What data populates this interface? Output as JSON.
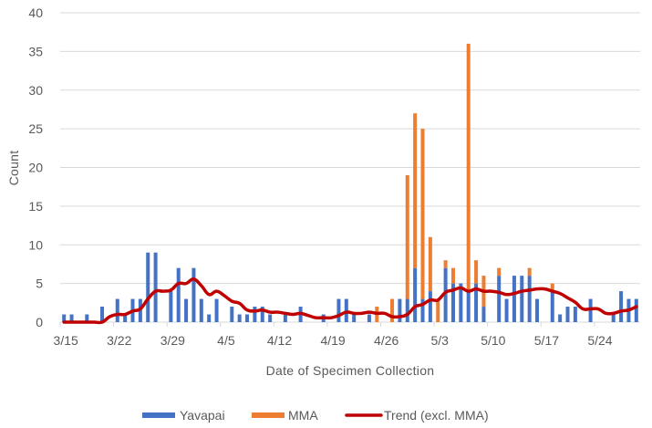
{
  "chart_data": {
    "type": "bar",
    "stacked": true,
    "title": "",
    "xlabel": "Date of Specimen Collection",
    "ylabel": "Count",
    "ylim": [
      0,
      40
    ],
    "yticks": [
      0,
      5,
      10,
      15,
      20,
      25,
      30,
      35,
      40
    ],
    "grid": true,
    "legend_position": "bottom",
    "start_date": "3/15",
    "x_tick_labels": [
      "3/15",
      "3/22",
      "3/29",
      "4/5",
      "4/12",
      "4/19",
      "4/26",
      "5/3",
      "5/10",
      "5/17",
      "5/24"
    ],
    "x_tick_interval_days": 7,
    "categories": [
      "3/15",
      "3/16",
      "3/17",
      "3/18",
      "3/19",
      "3/20",
      "3/21",
      "3/22",
      "3/23",
      "3/24",
      "3/25",
      "3/26",
      "3/27",
      "3/28",
      "3/29",
      "3/30",
      "3/31",
      "4/1",
      "4/2",
      "4/3",
      "4/4",
      "4/5",
      "4/6",
      "4/7",
      "4/8",
      "4/9",
      "4/10",
      "4/11",
      "4/12",
      "4/13",
      "4/14",
      "4/15",
      "4/16",
      "4/17",
      "4/18",
      "4/19",
      "4/20",
      "4/21",
      "4/22",
      "4/23",
      "4/24",
      "4/25",
      "4/26",
      "4/27",
      "4/28",
      "4/29",
      "4/30",
      "5/1",
      "5/2",
      "5/3",
      "5/4",
      "5/5",
      "5/6",
      "5/7",
      "5/8",
      "5/9",
      "5/10",
      "5/11",
      "5/12",
      "5/13",
      "5/14",
      "5/15",
      "5/16",
      "5/17",
      "5/18",
      "5/19",
      "5/20",
      "5/21",
      "5/22",
      "5/23",
      "5/24",
      "5/25",
      "5/26",
      "5/27",
      "5/28",
      "5/29"
    ],
    "series": [
      {
        "name": "Yavapai",
        "type": "bar",
        "color": "#4472c4",
        "values": [
          1,
          1,
          0,
          1,
          0,
          2,
          0,
          3,
          1,
          3,
          3,
          9,
          9,
          0,
          4,
          7,
          3,
          7,
          3,
          1,
          3,
          0,
          2,
          1,
          1,
          2,
          2,
          1,
          0,
          1,
          0,
          2,
          0,
          0,
          1,
          0,
          3,
          3,
          1,
          0,
          1,
          0,
          0,
          0,
          3,
          3,
          7,
          3,
          4,
          0,
          7,
          5,
          5,
          4,
          5,
          2,
          0,
          6,
          3,
          6,
          6,
          6,
          3,
          0,
          4,
          1,
          2,
          2,
          0,
          3,
          0,
          0,
          1,
          4,
          3,
          3
        ]
      },
      {
        "name": "MMA",
        "type": "bar",
        "color": "#ed7d31",
        "values": [
          0,
          0,
          0,
          0,
          0,
          0,
          0,
          0,
          0,
          0,
          0,
          0,
          0,
          0,
          0,
          0,
          0,
          0,
          0,
          0,
          0,
          0,
          0,
          0,
          0,
          0,
          0,
          0,
          0,
          0,
          0,
          0,
          0,
          0,
          0,
          0,
          0,
          0,
          0,
          0,
          0,
          2,
          0,
          3,
          0,
          16,
          20,
          22,
          7,
          3,
          1,
          2,
          0,
          32,
          3,
          4,
          0,
          1,
          0,
          0,
          0,
          1,
          0,
          0,
          1,
          0,
          0,
          0,
          0,
          0,
          0,
          0,
          0,
          0,
          0,
          0
        ]
      },
      {
        "name": "Trend (excl. MMA)",
        "type": "line",
        "color": "#c00000",
        "values": [
          0,
          0,
          0,
          0,
          0,
          0,
          0.71,
          1.0,
          1.0,
          1.43,
          1.71,
          3.0,
          4.0,
          4.0,
          4.14,
          5.0,
          5.0,
          5.57,
          4.71,
          3.57,
          4.0,
          3.43,
          2.71,
          2.43,
          1.57,
          1.43,
          1.57,
          1.29,
          1.29,
          1.14,
          1.0,
          1.14,
          0.86,
          0.57,
          0.57,
          0.57,
          0.86,
          1.29,
          1.14,
          1.14,
          1.29,
          1.14,
          1.14,
          0.71,
          0.71,
          1.0,
          2.0,
          2.29,
          2.86,
          2.86,
          3.86,
          4.14,
          4.43,
          4.0,
          4.29,
          4.0,
          4.0,
          3.86,
          3.57,
          3.71,
          4.0,
          4.14,
          4.29,
          4.29,
          4.0,
          3.71,
          3.14,
          2.57,
          1.71,
          1.71,
          1.71,
          1.14,
          1.14,
          1.43,
          1.57,
          2.0
        ]
      }
    ]
  }
}
